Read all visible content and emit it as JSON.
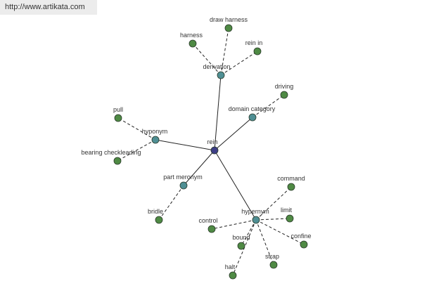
{
  "header": {
    "url": "http://www.artikata.com"
  },
  "center": {
    "label": "rein"
  },
  "relations": [
    {
      "label": "derivation",
      "terms": [
        "harness",
        "draw harness",
        "rein in"
      ]
    },
    {
      "label": "domain category",
      "terms": [
        "driving"
      ]
    },
    {
      "label": "hyponym",
      "terms": [
        "pull",
        "bearing checkleading"
      ]
    },
    {
      "label": "part meronym",
      "terms": [
        "bridle"
      ]
    },
    {
      "label": "hypernym",
      "terms": [
        "command",
        "limit",
        "confine",
        "strap",
        "halt",
        "bound",
        "control"
      ]
    }
  ]
}
